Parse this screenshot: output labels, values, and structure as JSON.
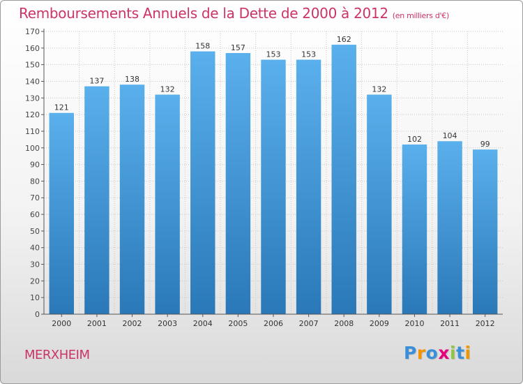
{
  "chart_data": {
    "type": "bar",
    "title": "Remboursements Annuels de la Dette de 2000 à 2012",
    "unit_note": "(en milliers d'€)",
    "categories": [
      "2000",
      "2001",
      "2002",
      "2003",
      "2004",
      "2005",
      "2006",
      "2007",
      "2008",
      "2009",
      "2010",
      "2011",
      "2012"
    ],
    "values": [
      121,
      137,
      138,
      132,
      158,
      157,
      153,
      153,
      162,
      132,
      102,
      104,
      99
    ],
    "ylim": [
      0,
      170
    ],
    "yticks": [
      0,
      10,
      20,
      30,
      40,
      50,
      60,
      70,
      80,
      90,
      100,
      110,
      120,
      130,
      140,
      150,
      160,
      170
    ],
    "xlabel": "",
    "ylabel": "",
    "grid": true
  },
  "commune": "MERXHEIM",
  "logo": {
    "letters": [
      "P",
      "r",
      "o",
      "x",
      "i",
      "t",
      "i"
    ],
    "colors": [
      "#3a8fd8",
      "#f29400",
      "#3a8fd8",
      "#e6007e",
      "#8dc63f",
      "#3a8fd8",
      "#f29400"
    ]
  },
  "colors": {
    "title": "#cc3366",
    "bar_top": "#5ab0ec",
    "bar_bottom": "#2a78b8",
    "grid": "#c8c8c8"
  }
}
